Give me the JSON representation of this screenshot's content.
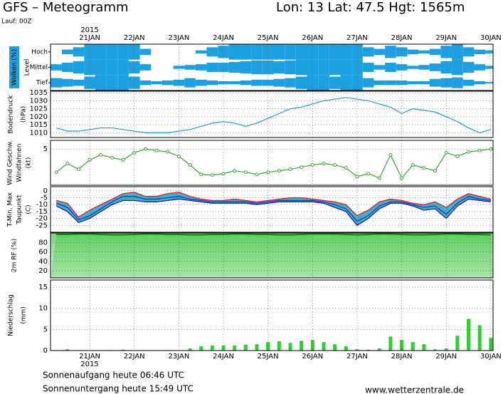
{
  "header": {
    "title": "GFS – Meteogramm",
    "location": "Lon: 13 Lat: 47.5 Hgt: 1565m",
    "run": "Lauf: 00Z"
  },
  "time_axis": {
    "year": "2015",
    "x": [
      0.25,
      0.5,
      0.75,
      1,
      1.25,
      1.5,
      1.75,
      2,
      2.25,
      2.5,
      2.75,
      3,
      3.25,
      3.5,
      3.75,
      4,
      4.25,
      4.5,
      4.75,
      5,
      5.25,
      5.5,
      5.75,
      6,
      6.25,
      6.5,
      6.75,
      7,
      7.25,
      7.5,
      7.75,
      8,
      8.25,
      8.5,
      8.75,
      9,
      9.25,
      9.5,
      9.75,
      10
    ],
    "xlim": [
      0.12,
      10.05
    ],
    "xticks": [
      {
        "value": 1,
        "label": "21JAN"
      },
      {
        "value": 2,
        "label": "22JAN"
      },
      {
        "value": 3,
        "label": "23JAN"
      },
      {
        "value": 4,
        "label": "24JAN"
      },
      {
        "value": 5,
        "label": "25JAN"
      },
      {
        "value": 6,
        "label": "26JAN"
      },
      {
        "value": 7,
        "label": "27JAN"
      },
      {
        "value": 8,
        "label": "28JAN"
      },
      {
        "value": 9,
        "label": "29JAN"
      },
      {
        "value": 10,
        "label": "30JAN"
      }
    ]
  },
  "chart_data": [
    {
      "type": "cloud-layers",
      "ylabel": "Wolken (%)",
      "yunit": "Level",
      "color": "#1ea0e0",
      "ylim": [
        0,
        100
      ],
      "categories": [
        "Hoch",
        "Mittel",
        "Tief"
      ],
      "values": [
        [
          0,
          30,
          60,
          100,
          100,
          100,
          100,
          100,
          40,
          0,
          0,
          0,
          0,
          20,
          60,
          80,
          100,
          100,
          100,
          100,
          100,
          100,
          100,
          100,
          100,
          100,
          100,
          100,
          60,
          40,
          80,
          60,
          30,
          20,
          40,
          80,
          100,
          60,
          30,
          20
        ],
        [
          40,
          60,
          80,
          100,
          100,
          100,
          100,
          80,
          40,
          0,
          0,
          20,
          30,
          40,
          60,
          60,
          70,
          80,
          90,
          90,
          80,
          90,
          100,
          100,
          100,
          100,
          100,
          100,
          60,
          30,
          60,
          40,
          20,
          30,
          50,
          80,
          100,
          70,
          40,
          20
        ],
        [
          60,
          50,
          40,
          80,
          100,
          100,
          100,
          80,
          30,
          20,
          30,
          40,
          60,
          40,
          30,
          20,
          20,
          30,
          40,
          40,
          50,
          60,
          80,
          100,
          100,
          80,
          100,
          100,
          60,
          30,
          30,
          30,
          20,
          20,
          50,
          60,
          70,
          40,
          20,
          10
        ]
      ]
    },
    {
      "type": "line",
      "ylabel": "Bodendruck",
      "yunit": "(hPa)",
      "color": "#1a9bd7",
      "ylim": [
        1007,
        1036
      ],
      "yticks": [
        1010,
        1015,
        1020,
        1025,
        1030,
        1035
      ],
      "values": [
        1013,
        1011,
        1011,
        1012,
        1013,
        1013,
        1012,
        1011,
        1010,
        1010,
        1010,
        1011,
        1012,
        1014,
        1016,
        1017,
        1016,
        1014,
        1016,
        1019,
        1022,
        1025,
        1026,
        1028,
        1030,
        1031,
        1032,
        1031,
        1030,
        1028,
        1026,
        1022,
        1025,
        1024,
        1023,
        1020,
        1017,
        1013,
        1010,
        1012
      ]
    },
    {
      "type": "line-markers",
      "ylabel": "Wind Geschw.",
      "ylabel2": "Windfahnen",
      "yunit": "(kt)",
      "color": "#33aa33",
      "ylim": [
        0,
        6.2
      ],
      "yticks": [
        5
      ],
      "values": [
        1.8,
        3.0,
        2.2,
        3.5,
        4.2,
        3.8,
        3.5,
        4.5,
        5.0,
        4.8,
        4.6,
        4.0,
        2.8,
        1.5,
        1.4,
        1.6,
        2.0,
        1.8,
        1.5,
        1.8,
        2.0,
        2.2,
        2.5,
        2.8,
        3.0,
        2.8,
        2.4,
        1.2,
        1.6,
        1.0,
        4.2,
        1.0,
        2.8,
        2.4,
        2.0,
        4.5,
        4.0,
        4.6,
        4.8,
        5.0
      ]
    },
    {
      "type": "temperature",
      "ylabel": "T-Min, Max",
      "ylabel2": "Taupunkt",
      "yunit": "(C)",
      "ylim": [
        -30,
        3
      ],
      "yticks": [
        0,
        -5,
        -10,
        -15,
        -20,
        -25
      ],
      "series": [
        {
          "color": "#e02020",
          "values": [
            -7,
            -9,
            -19,
            -14,
            -10,
            -6,
            -2,
            -1,
            -4,
            -4,
            -2,
            -1,
            -4,
            -6,
            -7,
            -7,
            -6,
            -7,
            -8,
            -7,
            -6,
            -5,
            -5,
            -6,
            -7,
            -8,
            -10,
            -18,
            -14,
            -8,
            -6,
            -7,
            -9,
            -10,
            -8,
            -12,
            -6,
            -2,
            -4,
            -6
          ]
        },
        {
          "color": "#2030e0",
          "values": [
            -9,
            -12,
            -21,
            -18,
            -13,
            -8,
            -4,
            -4,
            -6,
            -6,
            -5,
            -4,
            -6,
            -7,
            -8,
            -8,
            -8,
            -8,
            -9,
            -8,
            -7,
            -7,
            -7,
            -7,
            -8,
            -10,
            -13,
            -22,
            -18,
            -11,
            -8,
            -8,
            -10,
            -12,
            -11,
            -17,
            -9,
            -4,
            -6,
            -7
          ]
        },
        {
          "color": "#202080",
          "values": [
            -11,
            -15,
            -23,
            -20,
            -15,
            -10,
            -7,
            -7,
            -8,
            -8,
            -7,
            -6,
            -7,
            -8,
            -9,
            -9,
            -9,
            -9,
            -10,
            -9,
            -8,
            -8,
            -8,
            -8,
            -9,
            -12,
            -15,
            -25,
            -20,
            -13,
            -9,
            -9,
            -11,
            -14,
            -13,
            -20,
            -11,
            -6,
            -7,
            -8
          ]
        }
      ]
    },
    {
      "type": "area",
      "ylabel": "2m RF (%)",
      "color": "#22cc22",
      "ylim": [
        5,
        100
      ],
      "yticks": [
        20,
        40,
        60,
        80
      ],
      "values": [
        97,
        97,
        98,
        98,
        97,
        96,
        96,
        97,
        98,
        98,
        97,
        97,
        96,
        96,
        97,
        97,
        98,
        98,
        97,
        97,
        96,
        96,
        97,
        98,
        98,
        98,
        97,
        96,
        97,
        98,
        98,
        97,
        96,
        96,
        97,
        98,
        98,
        97,
        97,
        96
      ]
    },
    {
      "type": "bar",
      "ylabel": "Niederschlag",
      "yunit": "(mm)",
      "color": "#33cc33",
      "ylim": [
        0,
        16.7
      ],
      "yticks": [
        0,
        5,
        10,
        15
      ],
      "values": [
        0,
        0.3,
        0,
        0,
        0,
        0.1,
        0.2,
        0,
        0,
        0,
        0.1,
        0.1,
        0.5,
        1.0,
        1.2,
        1.2,
        1.2,
        1.4,
        1.5,
        2.0,
        2.2,
        1.8,
        2.3,
        2.5,
        2.0,
        1.5,
        1.0,
        0.3,
        0.2,
        0.5,
        3.3,
        2.5,
        2.0,
        1.5,
        0.3,
        0.5,
        3.5,
        7.5,
        6.0,
        3.0
      ]
    }
  ],
  "footer": {
    "sunrise": "Sonnenaufgang heute 06:46 UTC",
    "sunset": "Sonnenuntergang heute 15:49 UTC",
    "source": "www.wetterzentrale.de"
  }
}
